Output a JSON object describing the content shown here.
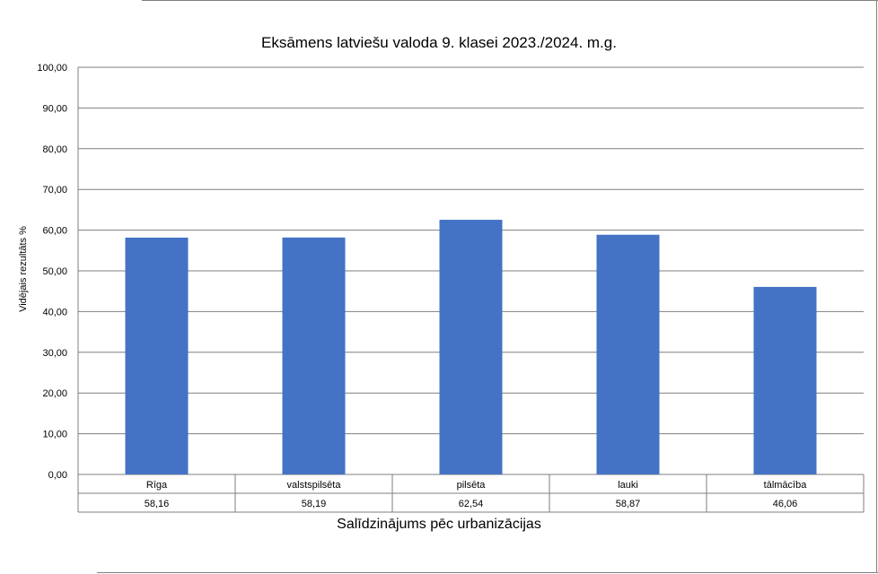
{
  "chart_data": {
    "type": "bar",
    "title": "Eksāmens latviešu valoda 9. klasei 2023./2024. m.g.",
    "xlabel": "Salīdzinājums pēc urbanizācijas",
    "ylabel": "Vidējais rezultāts %",
    "categories": [
      "Rīga",
      "valstspilsēta",
      "pilsēta",
      "lauki",
      "tālmācība"
    ],
    "values": [
      58.16,
      58.19,
      62.54,
      58.87,
      46.06
    ],
    "value_labels": [
      "58,16",
      "58,19",
      "62,54",
      "58,87",
      "46,06"
    ],
    "ylim": [
      0,
      100
    ],
    "yticks": [
      "0,00",
      "10,00",
      "20,00",
      "30,00",
      "40,00",
      "50,00",
      "60,00",
      "70,00",
      "80,00",
      "90,00",
      "100,00"
    ],
    "grid": true,
    "data_table": true,
    "bar_color": "#4472C4"
  }
}
